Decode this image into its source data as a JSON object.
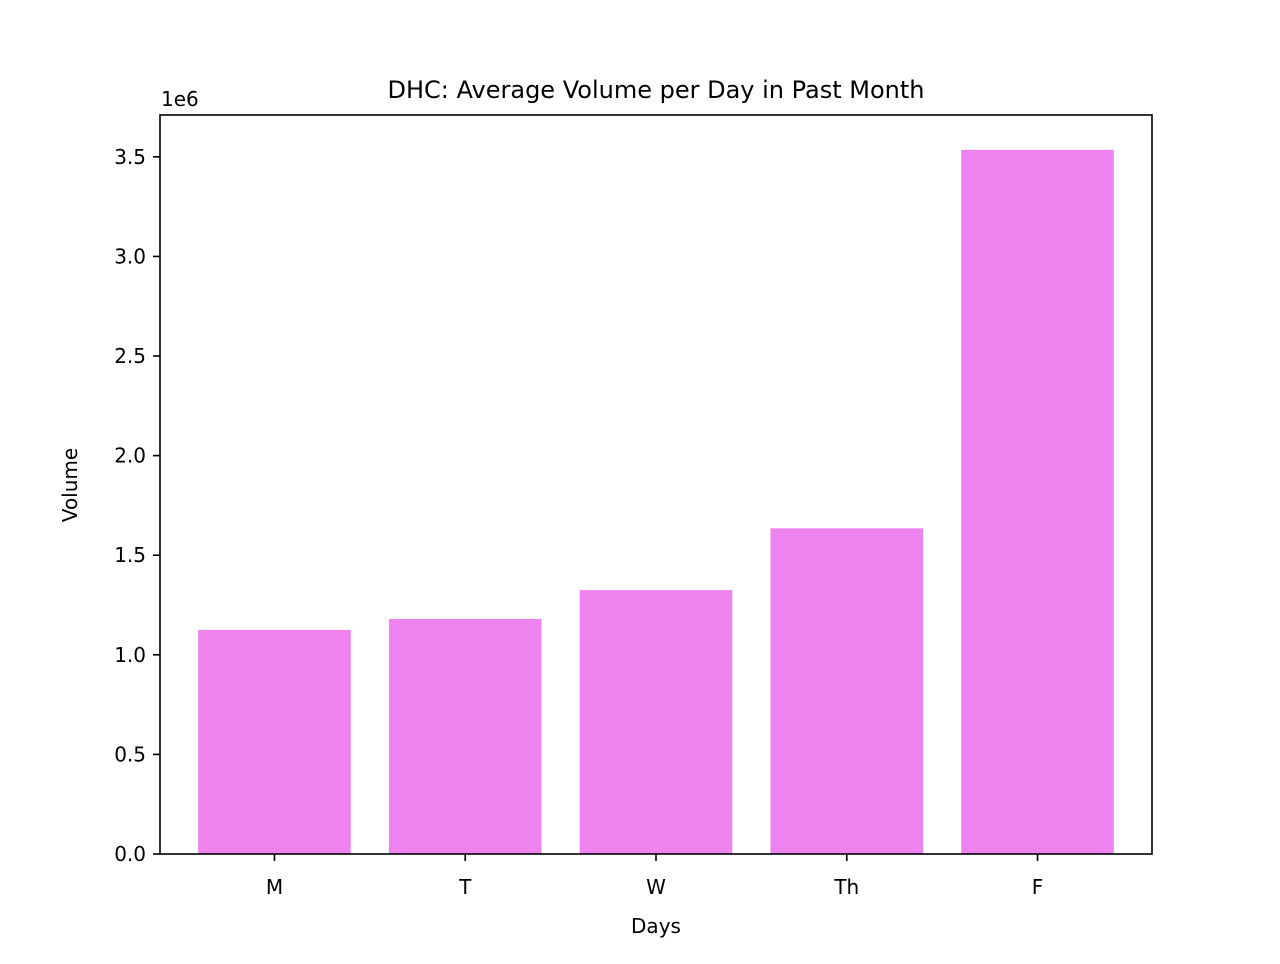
{
  "chart_data": {
    "type": "bar",
    "title": "DHC: Average Volume per Day in Past Month",
    "xlabel": "Days",
    "ylabel": "Volume",
    "y_offset_text": "1e6",
    "categories": [
      "M",
      "T",
      "W",
      "Th",
      "F"
    ],
    "values": [
      1125000,
      1180000,
      1325000,
      1635000,
      3535000
    ],
    "ylim": [
      0,
      3710000
    ],
    "yticks": [
      0,
      500000,
      1000000,
      1500000,
      2000000,
      2500000,
      3000000,
      3500000
    ],
    "ytick_labels": [
      "0.0",
      "0.5",
      "1.0",
      "1.5",
      "2.0",
      "2.5",
      "3.0",
      "3.5"
    ],
    "bar_color": "#ee82ee",
    "grid": false,
    "legend": "none"
  }
}
